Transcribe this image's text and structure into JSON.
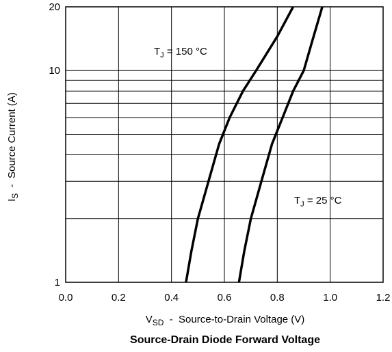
{
  "chart_data": {
    "type": "line",
    "title": "Source-Drain Diode Forward Voltage",
    "xlabel": {
      "main": "V",
      "sub": "SD",
      "rest": "  -  Source-to-Drain Voltage (V)"
    },
    "ylabel": {
      "main": "I",
      "sub": "S",
      "rest": "  -  Source Current (A)"
    },
    "xlim": [
      0.0,
      1.2
    ],
    "ylim": [
      1,
      20
    ],
    "yscale": "log",
    "x_ticks": [
      "0.0",
      "0.2",
      "0.4",
      "0.6",
      "0.8",
      "1.0",
      "1.2"
    ],
    "y_ticks": [
      "1",
      "10",
      "20"
    ],
    "grid": true,
    "series": [
      {
        "name": "150",
        "label": {
          "pre": "T",
          "sub": "J",
          "post": " = 150  °C"
        },
        "x": [
          0.455,
          0.475,
          0.5,
          0.54,
          0.58,
          0.62,
          0.67,
          0.72,
          0.8,
          0.86
        ],
        "y": [
          1,
          1.4,
          2.0,
          3.0,
          4.5,
          6.0,
          8.0,
          10.0,
          14.5,
          20
        ]
      },
      {
        "name": "25",
        "label": {
          "pre": "T",
          "sub": "J",
          "post": " = 25  °C"
        },
        "x": [
          0.655,
          0.675,
          0.7,
          0.74,
          0.78,
          0.82,
          0.86,
          0.9,
          0.93,
          0.97
        ],
        "y": [
          1,
          1.4,
          2.0,
          3.0,
          4.5,
          6.0,
          8.0,
          10.0,
          13.5,
          20
        ]
      }
    ]
  }
}
